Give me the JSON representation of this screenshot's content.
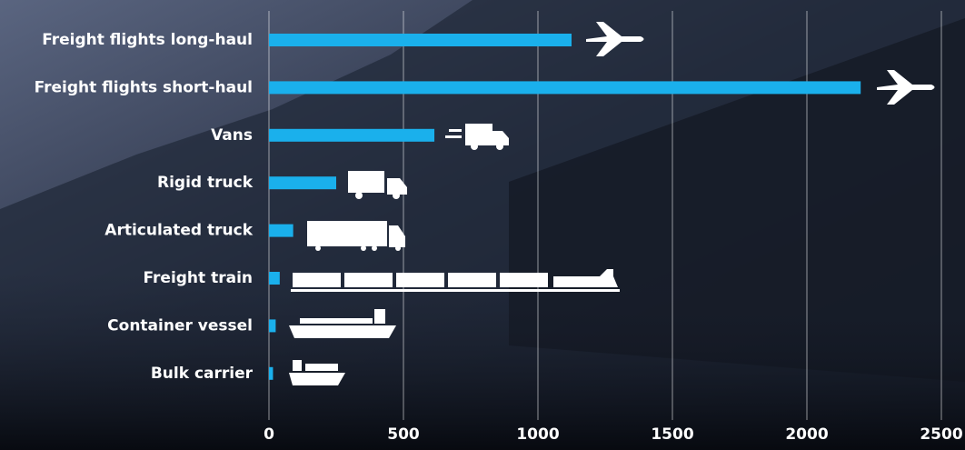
{
  "chart_data": {
    "type": "bar",
    "orientation": "horizontal",
    "categories": [
      "Freight flights long-haul",
      "Freight flights short-haul",
      "Vans",
      "Rigid truck",
      "Articulated truck",
      "Freight train",
      "Container vessel",
      "Bulk carrier"
    ],
    "values": [
      1125,
      2200,
      615,
      250,
      90,
      40,
      25,
      15
    ],
    "color": "#1ab0ec",
    "xlim": [
      0,
      2500
    ],
    "xticks": [
      0,
      500,
      1000,
      1500,
      2000,
      2500
    ],
    "grid": true
  }
}
